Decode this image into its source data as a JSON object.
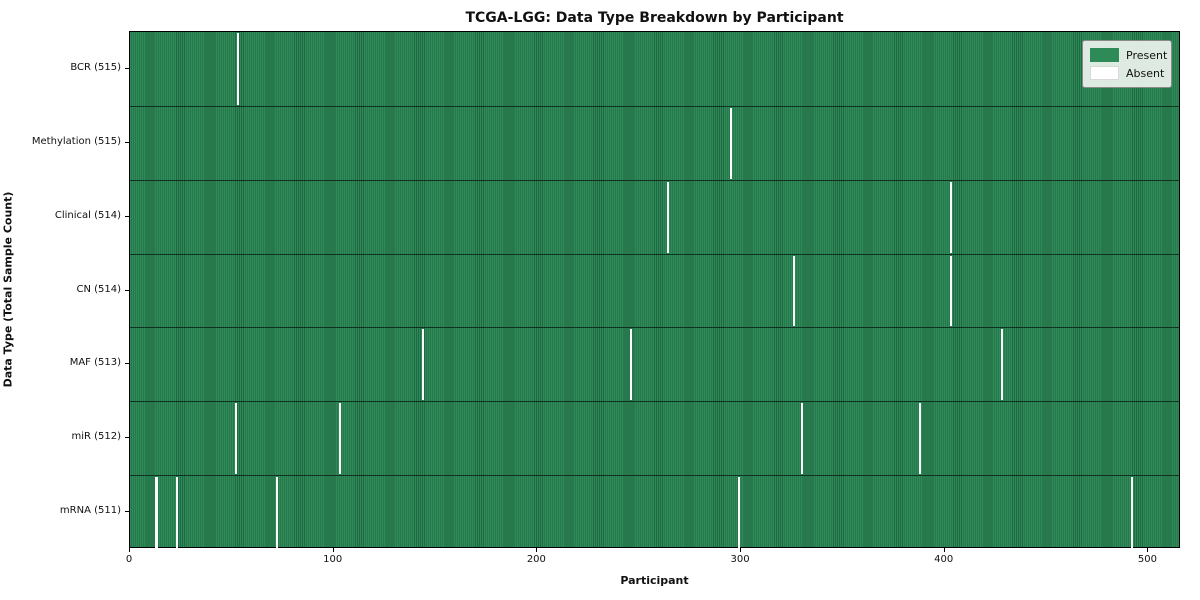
{
  "title": "TCGA-LGG: Data Type Breakdown by Participant",
  "colors": {
    "present": "#2e8b57",
    "present_edge": "#206743",
    "absent": "#fcfcfc",
    "row_divider": "#0a2417",
    "legend_bg": "#eef3ee",
    "legend_border": "#8a8a8a"
  },
  "chart_data": {
    "type": "heatmap",
    "title": "TCGA-LGG: Data Type Breakdown by Participant",
    "xlabel": "Participant",
    "ylabel": "Data Type (Total Sample Count)",
    "legend": [
      "Present",
      "Absent"
    ],
    "legend_position": "upper right",
    "grid": false,
    "x_range": [
      0,
      516
    ],
    "x_ticks": [
      0,
      100,
      200,
      300,
      400,
      500
    ],
    "total_participants": 516,
    "rows": [
      {
        "label": "BCR (515)",
        "data_type": "BCR",
        "present_count": 515,
        "absent_indices": [
          53
        ]
      },
      {
        "label": "Methylation (515)",
        "data_type": "Methylation",
        "present_count": 515,
        "absent_indices": [
          295
        ]
      },
      {
        "label": "Clinical (514)",
        "data_type": "Clinical",
        "present_count": 514,
        "absent_indices": [
          264,
          403
        ]
      },
      {
        "label": "CN (514)",
        "data_type": "CN",
        "present_count": 514,
        "absent_indices": [
          326,
          403
        ]
      },
      {
        "label": "MAF (513)",
        "data_type": "MAF",
        "present_count": 513,
        "absent_indices": [
          144,
          246,
          428
        ]
      },
      {
        "label": "miR (512)",
        "data_type": "miR",
        "present_count": 512,
        "absent_indices": [
          52,
          103,
          330,
          388
        ]
      },
      {
        "label": "mRNA (511)",
        "data_type": "mRNA",
        "present_count": 511,
        "absent_indices": [
          13,
          23,
          72,
          299,
          492
        ]
      }
    ]
  }
}
